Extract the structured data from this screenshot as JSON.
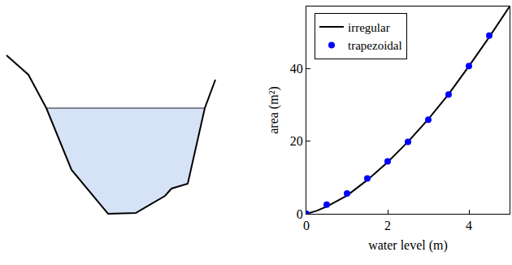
{
  "chart_data": {
    "type": "line",
    "x_label": "water level (m)",
    "y_label": "area (m²)",
    "xlim": [
      0,
      5
    ],
    "ylim": [
      0,
      57
    ],
    "xticks": [
      0,
      2,
      4
    ],
    "yticks": [
      0,
      20,
      40
    ],
    "grid": false,
    "legend": "upper left",
    "series": [
      {
        "name": "irregular",
        "type": "line",
        "color": "#000000",
        "line_style": "solid",
        "x": [
          0,
          0.25,
          0.5,
          1,
          1.5,
          2,
          2.5,
          3,
          3.5,
          4,
          4.5,
          5
        ],
        "values": [
          0,
          0.8,
          2.0,
          5.0,
          9.3,
          14.2,
          19.8,
          26.0,
          32.9,
          40.6,
          48.6,
          57.0
        ]
      },
      {
        "name": "trapezoidal",
        "type": "scatter",
        "color": "#0000ff",
        "marker": "circle",
        "x": [
          0,
          0.5,
          1,
          1.5,
          2,
          2.5,
          3,
          3.5,
          4,
          4.5
        ],
        "values": [
          0,
          2.5,
          5.6,
          9.7,
          14.4,
          19.8,
          25.9,
          32.8,
          40.6,
          49.0
        ]
      }
    ]
  }
}
